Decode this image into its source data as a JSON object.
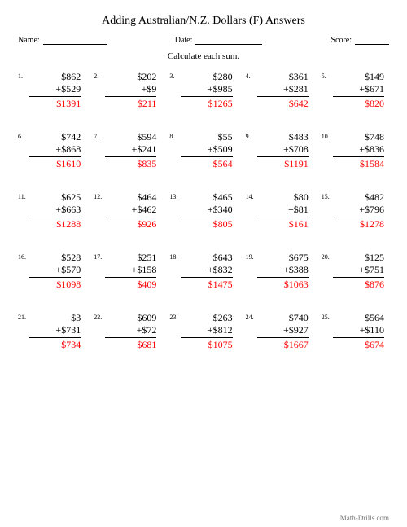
{
  "title": "Adding Australian/N.Z. Dollars (F) Answers",
  "labels": {
    "name": "Name:",
    "date": "Date:",
    "score": "Score:"
  },
  "instruction": "Calculate each sum.",
  "footer": "Math-Drills.com",
  "colors": {
    "answer": "#ff0000",
    "text": "#000000",
    "bg": "#ffffff"
  },
  "currency": "$",
  "problems": [
    {
      "n": "1.",
      "a": 862,
      "b": 529,
      "ans": 1391
    },
    {
      "n": "2.",
      "a": 202,
      "b": 9,
      "ans": 211
    },
    {
      "n": "3.",
      "a": 280,
      "b": 985,
      "ans": 1265
    },
    {
      "n": "4.",
      "a": 361,
      "b": 281,
      "ans": 642
    },
    {
      "n": "5.",
      "a": 149,
      "b": 671,
      "ans": 820
    },
    {
      "n": "6.",
      "a": 742,
      "b": 868,
      "ans": 1610
    },
    {
      "n": "7.",
      "a": 594,
      "b": 241,
      "ans": 835
    },
    {
      "n": "8.",
      "a": 55,
      "b": 509,
      "ans": 564
    },
    {
      "n": "9.",
      "a": 483,
      "b": 708,
      "ans": 1191
    },
    {
      "n": "10.",
      "a": 748,
      "b": 836,
      "ans": 1584
    },
    {
      "n": "11.",
      "a": 625,
      "b": 663,
      "ans": 1288
    },
    {
      "n": "12.",
      "a": 464,
      "b": 462,
      "ans": 926
    },
    {
      "n": "13.",
      "a": 465,
      "b": 340,
      "ans": 805
    },
    {
      "n": "14.",
      "a": 80,
      "b": 81,
      "ans": 161
    },
    {
      "n": "15.",
      "a": 482,
      "b": 796,
      "ans": 1278
    },
    {
      "n": "16.",
      "a": 528,
      "b": 570,
      "ans": 1098
    },
    {
      "n": "17.",
      "a": 251,
      "b": 158,
      "ans": 409
    },
    {
      "n": "18.",
      "a": 643,
      "b": 832,
      "ans": 1475
    },
    {
      "n": "19.",
      "a": 675,
      "b": 388,
      "ans": 1063
    },
    {
      "n": "20.",
      "a": 125,
      "b": 751,
      "ans": 876
    },
    {
      "n": "21.",
      "a": 3,
      "b": 731,
      "ans": 734
    },
    {
      "n": "22.",
      "a": 609,
      "b": 72,
      "ans": 681
    },
    {
      "n": "23.",
      "a": 263,
      "b": 812,
      "ans": 1075
    },
    {
      "n": "24.",
      "a": 740,
      "b": 927,
      "ans": 1667
    },
    {
      "n": "25.",
      "a": 564,
      "b": 110,
      "ans": 674
    }
  ]
}
